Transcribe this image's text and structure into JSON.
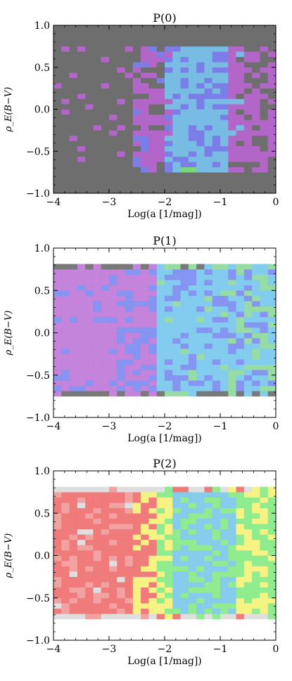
{
  "chart_data": [
    {
      "type": "heatmap",
      "title": "P(0)",
      "xlabel": "Log(a [1/mag])",
      "ylabel": "ρ_E(B−V)",
      "xlim": [
        -4,
        0
      ],
      "ylim": [
        -1.0,
        1.0
      ],
      "x_tick_labels": [
        "−4",
        "−3",
        "−2",
        "−1",
        "0"
      ],
      "y_tick_labels": [
        "1.0",
        "0.5",
        "0.0",
        "−0.5",
        "−1.0"
      ],
      "grid": false,
      "palette": "gray (low) → magenta → blue → cyan (high)",
      "filled_y_range": [
        -1.0,
        1.0
      ]
    },
    {
      "type": "heatmap",
      "title": "P(1)",
      "xlabel": "Log(a [1/mag])",
      "ylabel": "ρ_E(B−V)",
      "xlim": [
        -4,
        0
      ],
      "ylim": [
        -1.0,
        1.0
      ],
      "x_tick_labels": [
        "−4",
        "−3",
        "−2",
        "−1",
        "0"
      ],
      "y_tick_labels": [
        "1.0",
        "0.5",
        "0.0",
        "−0.5",
        "−1.0"
      ],
      "grid": false,
      "palette": "gray (low) → magenta → blue → cyan → green (high)",
      "filled_y_range": [
        -0.76,
        0.8
      ]
    },
    {
      "type": "heatmap",
      "title": "P(2)",
      "xlabel": "Log(a [1/mag])",
      "ylabel": "ρ_E(B−V)",
      "xlim": [
        -4,
        0
      ],
      "ylim": [
        -1.0,
        1.0
      ],
      "x_tick_labels": [
        "−4",
        "−3",
        "−2",
        "−1",
        "0"
      ],
      "y_tick_labels": [
        "1.0",
        "0.5",
        "0.0",
        "−0.5",
        "−1.0"
      ],
      "grid": false,
      "palette": "light gray (low) → red → yellow → green → cyan (high)",
      "filled_y_range": [
        -0.76,
        0.8
      ]
    }
  ],
  "colors": {
    "p0_background": "#6e6e6e",
    "p0_magenta": "#b766cf",
    "p0_blue": "#7b7ff0",
    "p0_cyan": "#78c2ee",
    "p0_green": "#7be07b",
    "p1_gray": "#6e6e6e",
    "p1_magenta": "#c07ad8",
    "p1_blue": "#7b8cf0",
    "p1_cyan": "#7ac8ee",
    "p1_green": "#8ed99a",
    "p2_lightgray": "#dcdcdc",
    "p2_red": "#ef7070",
    "p2_pink": "#f29a9a",
    "p2_yellow": "#f5f27a",
    "p2_green": "#86ea86",
    "p2_cyan": "#7cc8ea"
  }
}
